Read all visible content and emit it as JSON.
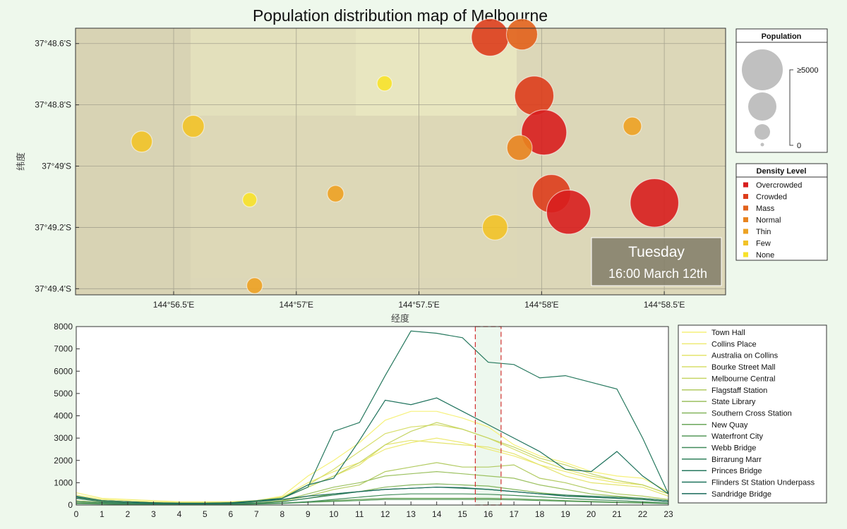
{
  "chart_data": [
    {
      "type": "scatter",
      "title": "Population distribution map of Melbourne",
      "xlabel": "经度",
      "ylabel": "纬度",
      "xlim_min": [
        56.1,
        58.75
      ],
      "ylim_min": [
        48.55,
        49.42
      ],
      "x_ticks": [
        {
          "value": 56.5,
          "label": "144°56.5'E"
        },
        {
          "value": 57.0,
          "label": "144°57'E"
        },
        {
          "value": 57.5,
          "label": "144°57.5'E"
        },
        {
          "value": 58.0,
          "label": "144°58'E"
        },
        {
          "value": 58.5,
          "label": "144°58.5'E"
        }
      ],
      "y_ticks": [
        {
          "value": 48.6,
          "label": "37°48.6'S"
        },
        {
          "value": 48.8,
          "label": "37°48.8'S"
        },
        {
          "value": 49.0,
          "label": "37°49'S"
        },
        {
          "value": 49.2,
          "label": "37°49.2'S"
        },
        {
          "value": 49.4,
          "label": "37°49.4'S"
        }
      ],
      "grid": true,
      "day_label": "Tuesday",
      "time_label": "16:00 March 12th",
      "points": [
        {
          "lon": 57.79,
          "lat": 48.58,
          "population": 3400,
          "level": "Crowded"
        },
        {
          "lon": 57.92,
          "lat": 48.57,
          "population": 2200,
          "level": "Mass"
        },
        {
          "lon": 57.36,
          "lat": 48.73,
          "population": 300,
          "level": "None"
        },
        {
          "lon": 57.97,
          "lat": 48.77,
          "population": 3800,
          "level": "Crowded"
        },
        {
          "lon": 58.01,
          "lat": 48.89,
          "population": 5300,
          "level": "Overcrowded"
        },
        {
          "lon": 58.37,
          "lat": 48.87,
          "population": 550,
          "level": "Thin"
        },
        {
          "lon": 56.58,
          "lat": 48.87,
          "population": 900,
          "level": "Few"
        },
        {
          "lon": 56.37,
          "lat": 48.92,
          "population": 800,
          "level": "Few"
        },
        {
          "lon": 57.91,
          "lat": 48.94,
          "population": 1300,
          "level": "Normal"
        },
        {
          "lon": 58.04,
          "lat": 49.09,
          "population": 3600,
          "level": "Crowded"
        },
        {
          "lon": 58.11,
          "lat": 49.15,
          "population": 5000,
          "level": "Overcrowded"
        },
        {
          "lon": 58.46,
          "lat": 49.12,
          "population": 6200,
          "level": "Overcrowded"
        },
        {
          "lon": 57.16,
          "lat": 49.09,
          "population": 400,
          "level": "Thin"
        },
        {
          "lon": 56.81,
          "lat": 49.11,
          "population": 250,
          "level": "None"
        },
        {
          "lon": 57.81,
          "lat": 49.2,
          "population": 1300,
          "level": "Few"
        },
        {
          "lon": 56.83,
          "lat": 49.39,
          "population": 350,
          "level": "Thin"
        }
      ],
      "size_legend": {
        "title": "Population",
        "max_label": "≥5000",
        "min_label": "0"
      },
      "color_legend": {
        "title": "Density Level",
        "items": [
          {
            "label": "Overcrowded",
            "color": "#d81e1e"
          },
          {
            "label": "Crowded",
            "color": "#dd3d1c"
          },
          {
            "label": "Mass",
            "color": "#e2621c"
          },
          {
            "label": "Normal",
            "color": "#e8841f"
          },
          {
            "label": "Thin",
            "color": "#eda223"
          },
          {
            "label": "Few",
            "color": "#f2c328"
          },
          {
            "label": "None",
            "color": "#f7e22b"
          }
        ]
      }
    },
    {
      "type": "line",
      "x": [
        0,
        1,
        2,
        3,
        4,
        5,
        6,
        7,
        8,
        9,
        10,
        11,
        12,
        13,
        14,
        15,
        16,
        17,
        18,
        19,
        20,
        21,
        22,
        23
      ],
      "ylim": [
        0,
        8000
      ],
      "y_ticks": [
        0,
        1000,
        2000,
        3000,
        4000,
        5000,
        6000,
        7000,
        8000
      ],
      "highlight_hour": 16,
      "series": [
        {
          "name": "Town Hall",
          "color": "#f6f17a",
          "values": [
            550,
            300,
            250,
            200,
            150,
            150,
            150,
            200,
            400,
            1300,
            2000,
            2800,
            3800,
            4200,
            4200,
            3900,
            3500,
            2700,
            2200,
            1900,
            1500,
            1300,
            1200,
            600
          ]
        },
        {
          "name": "Collins Place",
          "color": "#eeea74",
          "values": [
            450,
            250,
            200,
            150,
            120,
            120,
            150,
            200,
            350,
            1000,
            1500,
            1900,
            2500,
            2800,
            3000,
            2800,
            2500,
            2200,
            1800,
            1500,
            1200,
            1000,
            900,
            500
          ]
        },
        {
          "name": "Australia on Collins",
          "color": "#e4e46e",
          "values": [
            300,
            200,
            150,
            120,
            100,
            100,
            120,
            150,
            300,
            800,
            1300,
            1800,
            2700,
            2900,
            2800,
            2700,
            2600,
            2300,
            1800,
            1300,
            1000,
            900,
            800,
            400
          ]
        },
        {
          "name": "Bourke Street Mall",
          "color": "#d7de6a",
          "values": [
            350,
            200,
            150,
            120,
            100,
            100,
            120,
            180,
            350,
            900,
            1600,
            2400,
            3200,
            3500,
            3600,
            3400,
            3000,
            2500,
            2000,
            1600,
            1300,
            1100,
            900,
            500
          ]
        },
        {
          "name": "Melbourne Central",
          "color": "#c6d566",
          "values": [
            300,
            180,
            130,
            100,
            90,
            90,
            110,
            170,
            300,
            800,
            1300,
            1900,
            2700,
            3300,
            3700,
            3400,
            3000,
            2600,
            2100,
            1800,
            1400,
            1100,
            900,
            500
          ]
        },
        {
          "name": "Flagstaff Station",
          "color": "#b2cb62",
          "values": [
            150,
            100,
            80,
            60,
            50,
            50,
            60,
            90,
            180,
            400,
            700,
            900,
            1500,
            1700,
            1900,
            1700,
            1700,
            1800,
            1200,
            1000,
            700,
            500,
            400,
            250
          ]
        },
        {
          "name": "State Library",
          "color": "#9cc160",
          "values": [
            200,
            120,
            90,
            70,
            60,
            60,
            70,
            100,
            200,
            500,
            800,
            1000,
            1300,
            1400,
            1500,
            1400,
            1300,
            1200,
            900,
            700,
            500,
            400,
            300,
            200
          ]
        },
        {
          "name": "Southern Cross Station",
          "color": "#84b55d",
          "values": [
            100,
            70,
            50,
            40,
            35,
            35,
            45,
            70,
            150,
            300,
            500,
            600,
            800,
            900,
            950,
            900,
            850,
            700,
            550,
            450,
            350,
            300,
            250,
            150
          ]
        },
        {
          "name": "New Quay",
          "color": "#6aa65a",
          "values": [
            80,
            50,
            40,
            30,
            25,
            25,
            30,
            50,
            90,
            150,
            200,
            250,
            300,
            300,
            300,
            300,
            300,
            280,
            240,
            200,
            160,
            130,
            110,
            80
          ]
        },
        {
          "name": "Waterfront City",
          "color": "#54985a",
          "values": [
            60,
            40,
            30,
            25,
            20,
            20,
            25,
            40,
            70,
            120,
            160,
            200,
            250,
            250,
            250,
            250,
            250,
            230,
            200,
            170,
            140,
            110,
            90,
            60
          ]
        },
        {
          "name": "Webb Bridge",
          "color": "#428c5b",
          "values": [
            70,
            50,
            40,
            30,
            25,
            25,
            30,
            50,
            80,
            150,
            250,
            350,
            450,
            500,
            500,
            500,
            480,
            430,
            370,
            300,
            240,
            200,
            150,
            90
          ]
        },
        {
          "name": "Birrarung Marr",
          "color": "#31805c",
          "values": [
            150,
            100,
            80,
            60,
            50,
            50,
            60,
            90,
            150,
            300,
            450,
            600,
            700,
            750,
            800,
            750,
            700,
            600,
            500,
            450,
            400,
            350,
            300,
            200
          ]
        },
        {
          "name": "Princes Bridge",
          "color": "#26785e",
          "values": [
            400,
            200,
            150,
            100,
            80,
            80,
            100,
            200,
            300,
            800,
            3300,
            3700,
            5800,
            7800,
            7700,
            7500,
            6400,
            6300,
            5700,
            5800,
            5500,
            5200,
            3000,
            500
          ]
        },
        {
          "name": "Flinders St Station Underpass",
          "color": "#1e725c",
          "values": [
            300,
            150,
            100,
            80,
            60,
            60,
            80,
            150,
            300,
            900,
            1200,
            2900,
            4700,
            4500,
            4800,
            4200,
            3600,
            3000,
            2400,
            1600,
            1500,
            2400,
            1300,
            500
          ]
        },
        {
          "name": "Sandridge Bridge",
          "color": "#186a5a",
          "values": [
            350,
            200,
            150,
            100,
            80,
            80,
            100,
            150,
            250,
            400,
            500,
            600,
            700,
            750,
            800,
            780,
            700,
            600,
            500,
            400,
            350,
            300,
            250,
            150
          ]
        }
      ]
    }
  ]
}
